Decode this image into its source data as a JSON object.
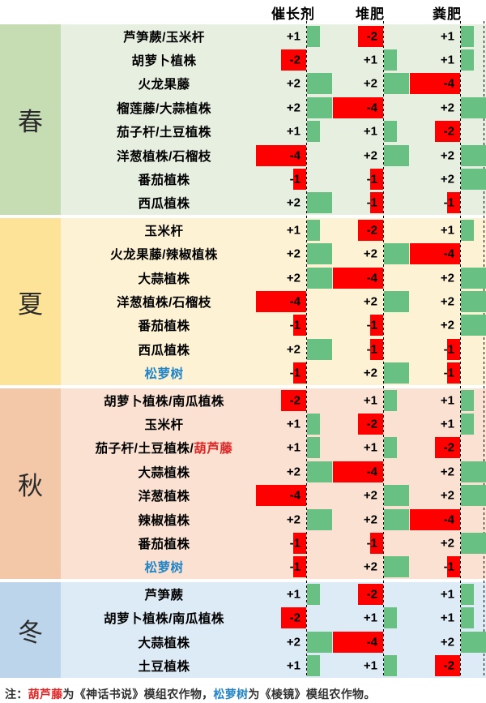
{
  "chart_data": {
    "type": "table",
    "columns": [
      "催长剂",
      "堆肥",
      "粪肥"
    ],
    "value_range": [
      -4,
      2
    ],
    "sections": [
      {
        "season": "春",
        "label_bg": "#c6dcb3",
        "row_bg": "#e7efe0",
        "rows": [
          {
            "name": "芦笋蕨/玉米杆",
            "values": [
              1,
              -2,
              1
            ]
          },
          {
            "name": "胡萝卜植株",
            "values": [
              -2,
              1,
              1
            ]
          },
          {
            "name": "火龙果藤",
            "values": [
              2,
              2,
              -4
            ]
          },
          {
            "name": "榴莲藤/大蒜植株",
            "values": [
              2,
              -4,
              2
            ]
          },
          {
            "name": "茄子杆/土豆植株",
            "values": [
              1,
              1,
              -2
            ]
          },
          {
            "name": "洋葱植株/石榴枝",
            "values": [
              -4,
              2,
              2
            ]
          },
          {
            "name": "番茄植株",
            "values": [
              -1,
              -1,
              2
            ]
          },
          {
            "name": "西瓜植株",
            "values": [
              2,
              -1,
              -1
            ]
          }
        ]
      },
      {
        "season": "夏",
        "label_bg": "#fce398",
        "row_bg": "#fdf2d3",
        "rows": [
          {
            "name": "玉米杆",
            "values": [
              1,
              -2,
              1
            ]
          },
          {
            "name": "火龙果藤/辣椒植株",
            "values": [
              2,
              2,
              -4
            ]
          },
          {
            "name": "大蒜植株",
            "values": [
              2,
              -4,
              2
            ]
          },
          {
            "name": "洋葱植株/石榴枝",
            "values": [
              -4,
              2,
              2
            ]
          },
          {
            "name": "番茄植株",
            "values": [
              -1,
              -1,
              2
            ]
          },
          {
            "name": "西瓜植株",
            "values": [
              2,
              -1,
              -1
            ]
          },
          {
            "name": "松萝树",
            "colored_segments": [
              {
                "text": "松萝树",
                "color": "#2283c5"
              }
            ],
            "values": [
              -1,
              2,
              -1
            ]
          }
        ]
      },
      {
        "season": "秋",
        "label_bg": "#f3c8a8",
        "row_bg": "#fae1d1",
        "rows": [
          {
            "name": "胡萝卜植株/南瓜植株",
            "values": [
              -2,
              1,
              1
            ]
          },
          {
            "name": "玉米杆",
            "values": [
              1,
              -2,
              1
            ]
          },
          {
            "name": "茄子杆/土豆植株/葫芦藤",
            "colored_segments": [
              {
                "text": "葫芦藤",
                "color": "#e02626"
              }
            ],
            "values": [
              1,
              1,
              -2
            ]
          },
          {
            "name": "大蒜植株",
            "values": [
              2,
              -4,
              2
            ]
          },
          {
            "name": "洋葱植株",
            "values": [
              -4,
              2,
              2
            ]
          },
          {
            "name": "辣椒植株",
            "values": [
              2,
              2,
              -4
            ]
          },
          {
            "name": "番茄植株",
            "values": [
              -1,
              -1,
              2
            ]
          },
          {
            "name": "松萝树",
            "colored_segments": [
              {
                "text": "松萝树",
                "color": "#2283c5"
              }
            ],
            "values": [
              -1,
              2,
              -1
            ]
          }
        ]
      },
      {
        "season": "冬",
        "label_bg": "#bcd5ea",
        "row_bg": "#dcebf6",
        "rows": [
          {
            "name": "芦笋蕨",
            "values": [
              1,
              -2,
              1
            ]
          },
          {
            "name": "胡萝卜植株/南瓜植株",
            "values": [
              -2,
              1,
              1
            ]
          },
          {
            "name": "大蒜植株",
            "values": [
              2,
              -4,
              2
            ]
          },
          {
            "name": "土豆植株",
            "values": [
              1,
              1,
              -2
            ]
          }
        ]
      }
    ]
  },
  "footer": {
    "parts": [
      {
        "text": "注：",
        "color": "#333333"
      },
      {
        "text": "葫芦藤",
        "color": "#e02626"
      },
      {
        "text": "为《神话书说》模组农作物，",
        "color": "#333333"
      },
      {
        "text": "松萝树",
        "color": "#2283c5"
      },
      {
        "text": "为《棱镜》模组农作物。",
        "color": "#333333"
      }
    ]
  },
  "colors": {
    "positive_bar": "#68c083",
    "negative_bar": "#fe0000",
    "mod_crop_red": "#e02626",
    "mod_crop_blue": "#2283c5",
    "header_text": "#000000",
    "note_text": "#333333"
  }
}
